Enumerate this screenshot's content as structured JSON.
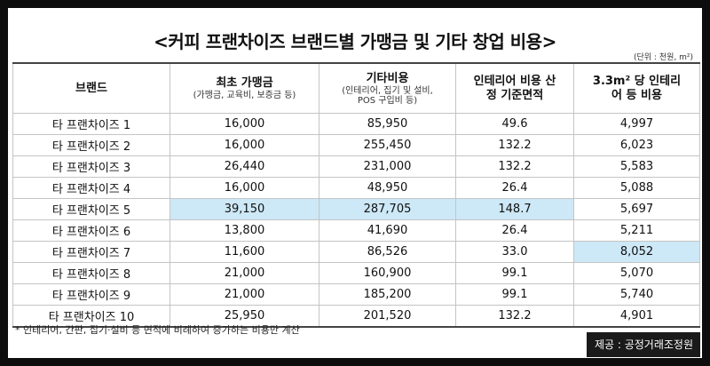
{
  "title": "<커피 프랜차이즈 브랜드별 가맹금 및 기타 창업 비용>",
  "unit": "(단위 : 천원, m²)",
  "headers": [
    {
      "main": "브랜드",
      "sub": ""
    },
    {
      "main": "최초 가맹금",
      "sub": "(가맹금, 교육비, 보증금 등)"
    },
    {
      "main": "기타비용",
      "sub": "(인테리어, 집기 및 설비, POS 구입비 등)"
    },
    {
      "main": "인테리어 비용 산정 기준면적",
      "sub": ""
    },
    {
      "main": "3.3m² 당 인테리어 등 비용",
      "sub": ""
    }
  ],
  "rows": [
    {
      "brand": "타 프랜차이즈 1",
      "initial_fee": "16,000",
      "other_cost": "85,950",
      "area": "49.6",
      "per_area": "4,997"
    },
    {
      "brand": "타 프랜차이즈 2",
      "initial_fee": "16,000",
      "other_cost": "255,450",
      "area": "132.2",
      "per_area": "6,023"
    },
    {
      "brand": "타 프랜차이즈 3",
      "initial_fee": "26,440",
      "other_cost": "231,000",
      "area": "132.2",
      "per_area": "5,583"
    },
    {
      "brand": "타 프랜차이즈 4",
      "initial_fee": "16,000",
      "other_cost": "48,950",
      "area": "26.4",
      "per_area": "5,088"
    },
    {
      "brand": "타 프랜차이즈 5",
      "initial_fee": "39,150",
      "other_cost": "287,705",
      "area": "148.7",
      "per_area": "5,697"
    },
    {
      "brand": "타 프랜차이즈 6",
      "initial_fee": "13,800",
      "other_cost": "41,690",
      "area": "26.4",
      "per_area": "5,211"
    },
    {
      "brand": "타 프랜차이즈 7",
      "initial_fee": "11,600",
      "other_cost": "86,526",
      "area": "33.0",
      "per_area": "8,052"
    },
    {
      "brand": "타 프랜차이즈 8",
      "initial_fee": "21,000",
      "other_cost": "160,900",
      "area": "99.1",
      "per_area": "5,070"
    },
    {
      "brand": "타 프랜차이즈 9",
      "initial_fee": "21,000",
      "other_cost": "185,200",
      "area": "99.1",
      "per_area": "5,740"
    },
    {
      "brand": "타 프랜차이즈 10",
      "initial_fee": "25,950",
      "other_cost": "201,520",
      "area": "132.2",
      "per_area": "4,901"
    }
  ],
  "highlight_color": "#cde8f6",
  "highlights": {
    "4": [
      "initial_fee",
      "other_cost",
      "area"
    ],
    "6": [
      "per_area"
    ]
  },
  "footnote": "* 인테리어, 간판, 집기·설비 등 면적에 비례하여 증가하는 비용만 계산",
  "source": "제공 : 공정거래조정원"
}
